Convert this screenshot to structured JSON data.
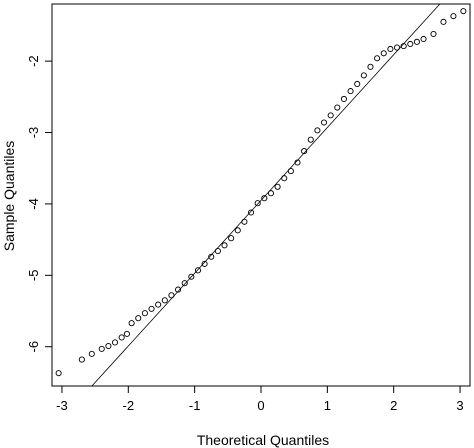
{
  "chart_data": {
    "type": "scatter",
    "title": "",
    "xlabel": "Theoretical Quantiles",
    "ylabel": "Sample Quantiles",
    "xlim": [
      -3.15,
      3.15
    ],
    "ylim": [
      -6.55,
      -1.2
    ],
    "x_ticks": [
      -3,
      -2,
      -1,
      0,
      1,
      2,
      3
    ],
    "y_ticks": [
      -6,
      -5,
      -4,
      -3,
      -2
    ],
    "x_tick_labels": [
      "-3",
      "-2",
      "-1",
      "0",
      "1",
      "2",
      "3"
    ],
    "y_tick_labels": [
      "-6",
      "-5",
      "-4",
      "-3",
      "-2"
    ],
    "grid": false,
    "marker": "open-circle",
    "reference_line": {
      "slope": 1.02,
      "intercept": -3.95
    },
    "series": [
      {
        "values": [
          {
            "x": -3.05,
            "y": -6.37
          },
          {
            "x": -2.7,
            "y": -6.18
          },
          {
            "x": -2.55,
            "y": -6.1
          },
          {
            "x": -2.4,
            "y": -6.03
          },
          {
            "x": -2.3,
            "y": -5.99
          },
          {
            "x": -2.2,
            "y": -5.94
          },
          {
            "x": -2.1,
            "y": -5.87
          },
          {
            "x": -2.02,
            "y": -5.82
          },
          {
            "x": -1.95,
            "y": -5.67
          },
          {
            "x": -1.85,
            "y": -5.6
          },
          {
            "x": -1.75,
            "y": -5.53
          },
          {
            "x": -1.65,
            "y": -5.47
          },
          {
            "x": -1.55,
            "y": -5.41
          },
          {
            "x": -1.45,
            "y": -5.35
          },
          {
            "x": -1.35,
            "y": -5.28
          },
          {
            "x": -1.25,
            "y": -5.2
          },
          {
            "x": -1.15,
            "y": -5.11
          },
          {
            "x": -1.05,
            "y": -5.02
          },
          {
            "x": -0.95,
            "y": -4.93
          },
          {
            "x": -0.85,
            "y": -4.84
          },
          {
            "x": -0.75,
            "y": -4.74
          },
          {
            "x": -0.65,
            "y": -4.66
          },
          {
            "x": -0.55,
            "y": -4.58
          },
          {
            "x": -0.45,
            "y": -4.48
          },
          {
            "x": -0.35,
            "y": -4.37
          },
          {
            "x": -0.25,
            "y": -4.25
          },
          {
            "x": -0.15,
            "y": -4.12
          },
          {
            "x": -0.05,
            "y": -3.99
          },
          {
            "x": 0.05,
            "y": -3.92
          },
          {
            "x": 0.15,
            "y": -3.85
          },
          {
            "x": 0.25,
            "y": -3.76
          },
          {
            "x": 0.35,
            "y": -3.64
          },
          {
            "x": 0.45,
            "y": -3.54
          },
          {
            "x": 0.55,
            "y": -3.42
          },
          {
            "x": 0.65,
            "y": -3.26
          },
          {
            "x": 0.75,
            "y": -3.1
          },
          {
            "x": 0.85,
            "y": -2.97
          },
          {
            "x": 0.95,
            "y": -2.86
          },
          {
            "x": 1.05,
            "y": -2.76
          },
          {
            "x": 1.15,
            "y": -2.65
          },
          {
            "x": 1.25,
            "y": -2.53
          },
          {
            "x": 1.35,
            "y": -2.42
          },
          {
            "x": 1.45,
            "y": -2.32
          },
          {
            "x": 1.55,
            "y": -2.2
          },
          {
            "x": 1.65,
            "y": -2.08
          },
          {
            "x": 1.75,
            "y": -1.96
          },
          {
            "x": 1.85,
            "y": -1.89
          },
          {
            "x": 1.95,
            "y": -1.83
          },
          {
            "x": 2.05,
            "y": -1.81
          },
          {
            "x": 2.15,
            "y": -1.79
          },
          {
            "x": 2.25,
            "y": -1.76
          },
          {
            "x": 2.35,
            "y": -1.73
          },
          {
            "x": 2.45,
            "y": -1.69
          },
          {
            "x": 2.6,
            "y": -1.62
          },
          {
            "x": 2.75,
            "y": -1.45
          },
          {
            "x": 2.9,
            "y": -1.37
          },
          {
            "x": 3.05,
            "y": -1.3
          }
        ]
      }
    ]
  }
}
